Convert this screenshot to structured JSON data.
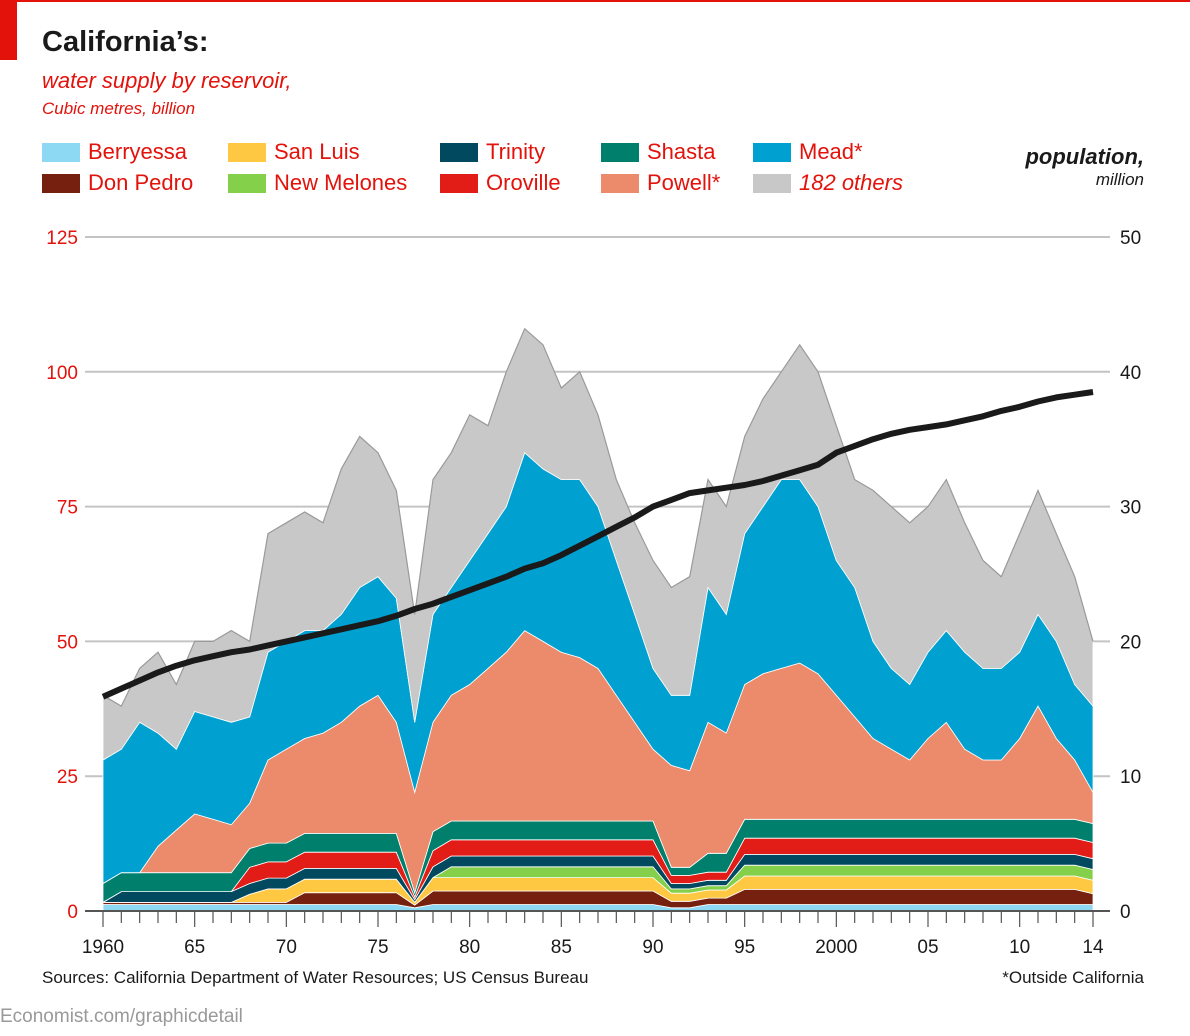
{
  "title": "California’s:",
  "subtitle": "water supply by reservoir,",
  "unit": "Cubic metres, billion",
  "population_label": "population,",
  "population_unit": "million",
  "source": "Sources: California Department of Water Resources; US Census Bureau",
  "footnote": "*Outside California",
  "credit": "Economist.com/graphicdetail",
  "chart_data": {
    "type": "area",
    "stacked": true,
    "x_tick_labels": [
      "1960",
      "65",
      "70",
      "75",
      "80",
      "85",
      "90",
      "95",
      "2000",
      "05",
      "10",
      "14"
    ],
    "x_tick_years": [
      1960,
      1965,
      1970,
      1975,
      1980,
      1985,
      1990,
      1995,
      2000,
      2005,
      2010,
      2014
    ],
    "xlim": [
      1960,
      2014
    ],
    "ylim_left": [
      0,
      125
    ],
    "left_ticks": [
      "0",
      "25",
      "50",
      "75",
      "100",
      "125"
    ],
    "ylim_right": [
      0,
      50
    ],
    "right_ticks": [
      "0",
      "10",
      "20",
      "30",
      "40",
      "50"
    ],
    "grid": true,
    "legend_placement": "top",
    "years": [
      1960,
      1961,
      1962,
      1963,
      1964,
      1965,
      1966,
      1967,
      1968,
      1969,
      1970,
      1971,
      1972,
      1973,
      1974,
      1975,
      1976,
      1977,
      1978,
      1979,
      1980,
      1981,
      1982,
      1983,
      1984,
      1985,
      1986,
      1987,
      1988,
      1989,
      1990,
      1991,
      1992,
      1993,
      1994,
      1995,
      1996,
      1997,
      1998,
      1999,
      2000,
      2001,
      2002,
      2003,
      2004,
      2005,
      2006,
      2007,
      2008,
      2009,
      2010,
      2011,
      2012,
      2013,
      2014
    ],
    "series": [
      {
        "name": "Berryessa",
        "color": "#8dd8f2",
        "values": [
          1.2,
          1.2,
          1.2,
          1.2,
          1.2,
          1.2,
          1.2,
          1.2,
          1.2,
          1.2,
          1.2,
          1.2,
          1.2,
          1.2,
          1.2,
          1.2,
          1.2,
          0.6,
          1.2,
          1.2,
          1.2,
          1.2,
          1.2,
          1.2,
          1.2,
          1.2,
          1.2,
          1.2,
          1.2,
          1.2,
          1.2,
          0.6,
          0.6,
          1.2,
          1.2,
          1.2,
          1.2,
          1.2,
          1.2,
          1.2,
          1.2,
          1.2,
          1.2,
          1.2,
          1.2,
          1.2,
          1.2,
          1.2,
          1.2,
          1.2,
          1.2,
          1.2,
          1.2,
          1.2,
          1.2
        ]
      },
      {
        "name": "Don Pedro",
        "color": "#76200f",
        "values": [
          0.4,
          0.4,
          0.4,
          0.4,
          0.4,
          0.4,
          0.4,
          0.4,
          0.4,
          0.4,
          0.4,
          2.2,
          2.2,
          2.2,
          2.2,
          2.2,
          2.2,
          0.5,
          2.5,
          2.5,
          2.5,
          2.5,
          2.5,
          2.5,
          2.5,
          2.5,
          2.5,
          2.5,
          2.5,
          2.5,
          2.5,
          1.2,
          1.2,
          1.2,
          1.2,
          2.8,
          2.8,
          2.8,
          2.8,
          2.8,
          2.8,
          2.8,
          2.8,
          2.8,
          2.8,
          2.8,
          2.8,
          2.8,
          2.8,
          2.8,
          2.8,
          2.8,
          2.8,
          2.8,
          2
        ]
      },
      {
        "name": "San Luis",
        "color": "#ffc843",
        "values": [
          0,
          0,
          0,
          0,
          0,
          0,
          0,
          0,
          1.5,
          2.5,
          2.5,
          2.5,
          2.5,
          2.5,
          2.5,
          2.5,
          2.5,
          0.5,
          2.5,
          2.5,
          2.5,
          2.5,
          2.5,
          2.5,
          2.5,
          2.5,
          2.5,
          2.5,
          2.5,
          2.5,
          2.5,
          1.5,
          1.5,
          1.5,
          1.5,
          2.5,
          2.5,
          2.5,
          2.5,
          2.5,
          2.5,
          2.5,
          2.5,
          2.5,
          2.5,
          2.5,
          2.5,
          2.5,
          2.5,
          2.5,
          2.5,
          2.5,
          2.5,
          2.5,
          2.5
        ]
      },
      {
        "name": "New Melones",
        "color": "#84d04a",
        "values": [
          0,
          0,
          0,
          0,
          0,
          0,
          0,
          0,
          0,
          0,
          0,
          0,
          0,
          0,
          0,
          0,
          0,
          0,
          0,
          2,
          2,
          2,
          2,
          2,
          2,
          2,
          2,
          2,
          2,
          2,
          2,
          0.8,
          0.8,
          0.8,
          0.8,
          2,
          2,
          2,
          2,
          2,
          2,
          2,
          2,
          2,
          2,
          2,
          2,
          2,
          2,
          2,
          2,
          2,
          2,
          2,
          2
        ]
      },
      {
        "name": "Trinity",
        "color": "#00495f",
        "values": [
          0,
          2,
          2,
          2,
          2,
          2,
          2,
          2,
          2,
          2,
          2,
          2,
          2,
          2,
          2,
          2,
          2,
          0.5,
          2,
          2,
          2,
          2,
          2,
          2,
          2,
          2,
          2,
          2,
          2,
          2,
          2,
          1,
          1,
          1,
          1,
          2,
          2,
          2,
          2,
          2,
          2,
          2,
          2,
          2,
          2,
          2,
          2,
          2,
          2,
          2,
          2,
          2,
          2,
          2,
          2
        ]
      },
      {
        "name": "Oroville",
        "color": "#e21d18",
        "values": [
          0,
          0,
          0,
          0,
          0,
          0,
          0,
          0,
          3,
          3,
          3,
          3,
          3,
          3,
          3,
          3,
          3,
          0.5,
          3,
          3,
          3,
          3,
          3,
          3,
          3,
          3,
          3,
          3,
          3,
          3,
          3,
          1.5,
          1.5,
          1.5,
          1.5,
          3,
          3,
          3,
          3,
          3,
          3,
          3,
          3,
          3,
          3,
          3,
          3,
          3,
          3,
          3,
          3,
          3,
          3,
          3,
          3
        ]
      },
      {
        "name": "Shasta",
        "color": "#00806c",
        "values": [
          3.5,
          3.5,
          3.5,
          3.5,
          3.5,
          3.5,
          3.5,
          3.5,
          3.5,
          3.5,
          3.5,
          3.5,
          3.5,
          3.5,
          3.5,
          3.5,
          3.5,
          0.8,
          3.5,
          3.5,
          3.5,
          3.5,
          3.5,
          3.5,
          3.5,
          3.5,
          3.5,
          3.5,
          3.5,
          3.5,
          3.5,
          1.5,
          1.5,
          3.5,
          3.5,
          3.5,
          3.5,
          3.5,
          3.5,
          3.5,
          3.5,
          3.5,
          3.5,
          3.5,
          3.5,
          3.5,
          3.5,
          3.5,
          3.5,
          3.5,
          3.5,
          3.5,
          3.5,
          3.5,
          3.5
        ]
      },
      {
        "name": "Powell*",
        "color": "#ec8b6b",
        "values": [
          0,
          0,
          0,
          4.9,
          7.9,
          10.9,
          9.9,
          8.9,
          8.4,
          15.4,
          17.4,
          17.6,
          18.6,
          20.6,
          23.6,
          25.6,
          20.6,
          18.6,
          20.3,
          23.3,
          25.3,
          28.3,
          31.3,
          35.3,
          33.3,
          31.3,
          30.3,
          28.3,
          23.3,
          18.3,
          13.3,
          18.9,
          17.9,
          24.3,
          22.3,
          25,
          27,
          28,
          29,
          27,
          23,
          19,
          15,
          13,
          11,
          15,
          18,
          13,
          11,
          11,
          15,
          21,
          15,
          11,
          5.8
        ]
      },
      {
        "name": "Mead*",
        "color": "#00a1d1",
        "values": [
          22.9,
          22.9,
          27.9,
          21,
          15,
          19,
          19,
          19,
          16,
          20,
          20,
          20,
          19,
          20,
          22,
          22,
          23,
          13,
          20,
          20,
          23,
          25,
          27,
          33,
          32,
          32,
          33,
          30,
          25,
          20,
          15,
          13,
          14,
          25,
          22,
          28,
          31,
          35,
          34,
          31,
          25,
          24,
          18,
          15,
          14,
          16,
          17,
          18,
          17,
          17,
          16,
          17,
          18,
          14,
          16
        ]
      },
      {
        "name": "182 others",
        "color": "#c8c8c8",
        "values": [
          12,
          8,
          10,
          15,
          12,
          13,
          14,
          17,
          14,
          22,
          22,
          22,
          20,
          27,
          28,
          23,
          20,
          20,
          25,
          25,
          27,
          20,
          25,
          23,
          23,
          17,
          20,
          17,
          15,
          17,
          20,
          20,
          22,
          20,
          20,
          18,
          20,
          20,
          25,
          25,
          25,
          20,
          28,
          30,
          30,
          27,
          28,
          24,
          20,
          17,
          22,
          23,
          20,
          20,
          12
        ]
      }
    ],
    "population": {
      "axis": "right",
      "color": "#1a1a1a",
      "values": [
        15.9,
        16.5,
        17.1,
        17.7,
        18.2,
        18.6,
        18.9,
        19.2,
        19.4,
        19.7,
        20.0,
        20.3,
        20.6,
        20.9,
        21.2,
        21.5,
        21.9,
        22.4,
        22.8,
        23.3,
        23.8,
        24.3,
        24.8,
        25.4,
        25.8,
        26.4,
        27.1,
        27.8,
        28.5,
        29.2,
        30.0,
        30.5,
        31.0,
        31.2,
        31.4,
        31.6,
        31.9,
        32.3,
        32.7,
        33.1,
        34.0,
        34.5,
        35.0,
        35.4,
        35.7,
        35.9,
        36.1,
        36.4,
        36.7,
        37.1,
        37.4,
        37.8,
        38.1,
        38.3,
        38.5
      ]
    }
  }
}
